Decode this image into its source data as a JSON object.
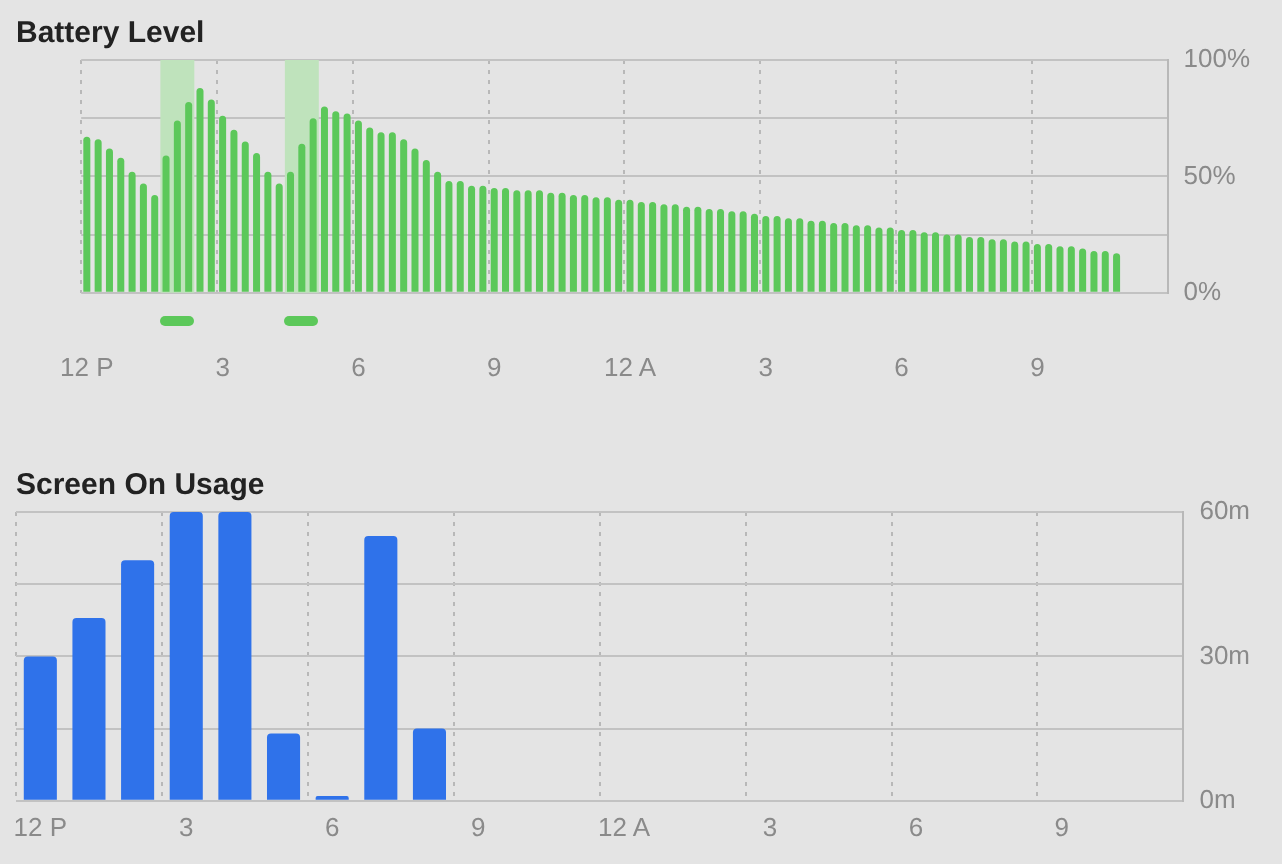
{
  "chart_data": [
    {
      "type": "bar",
      "title": "Battery Level",
      "color": "#5cc85a",
      "categories": [
        "12 P",
        null,
        null,
        null,
        null,
        null,
        null,
        null,
        null,
        null,
        null,
        null,
        "3",
        null,
        null,
        null,
        null,
        null,
        null,
        null,
        null,
        null,
        null,
        null,
        "6",
        null,
        null,
        null,
        null,
        null,
        null,
        null,
        null,
        null,
        null,
        null,
        "9",
        null,
        null,
        null,
        null,
        null,
        null,
        null,
        null,
        null,
        null,
        null,
        "12 A",
        null,
        null,
        null,
        null,
        null,
        null,
        null,
        null,
        null,
        null,
        null,
        "3",
        null,
        null,
        null,
        null,
        null,
        null,
        null,
        null,
        null,
        null,
        null,
        "6",
        null,
        null,
        null,
        null,
        null,
        null,
        null,
        null,
        null,
        null,
        null,
        "9",
        null,
        null,
        null,
        null,
        null,
        null,
        null,
        null,
        null,
        null,
        null
      ],
      "values": [
        67,
        66,
        62,
        58,
        52,
        47,
        42,
        59,
        74,
        82,
        88,
        83,
        76,
        70,
        65,
        60,
        52,
        47,
        52,
        64,
        75,
        80,
        78,
        77,
        74,
        71,
        69,
        69,
        66,
        62,
        57,
        52,
        48,
        48,
        46,
        46,
        45,
        45,
        44,
        44,
        44,
        43,
        43,
        42,
        42,
        41,
        41,
        40,
        40,
        39,
        39,
        38,
        38,
        37,
        37,
        36,
        36,
        35,
        35,
        34,
        33,
        33,
        32,
        32,
        31,
        31,
        30,
        30,
        29,
        29,
        28,
        28,
        27,
        27,
        26,
        26,
        25,
        25,
        24,
        24,
        23,
        23,
        22,
        22,
        21,
        21,
        20,
        20,
        19,
        18,
        18,
        17,
        null,
        null,
        null,
        null
      ],
      "ylim": [
        0,
        100
      ],
      "yticks": [
        {
          "value": 0,
          "label": "0%"
        },
        {
          "value": 25,
          "label": null
        },
        {
          "value": 50,
          "label": "50%"
        },
        {
          "value": 75,
          "label": null
        },
        {
          "value": 100,
          "label": "100%"
        }
      ],
      "grid": true
    },
    {
      "type": "bar",
      "title": "Screen On Usage",
      "color": "#2f72ea",
      "categories": [
        "12 P",
        null,
        null,
        "3",
        null,
        null,
        "6",
        null,
        null,
        "9",
        null,
        null,
        "12 A",
        null,
        null,
        "3",
        null,
        null,
        "6",
        null,
        null,
        "9",
        null,
        null
      ],
      "values": [
        30,
        38,
        50,
        60,
        60,
        14,
        1,
        55,
        15,
        null,
        null,
        null,
        null,
        null,
        null,
        null,
        null,
        null,
        null,
        null,
        null,
        null,
        null,
        null
      ],
      "ylim": [
        0,
        60
      ],
      "yticks": [
        {
          "value": 0,
          "label": "0m"
        },
        {
          "value": 15,
          "label": null
        },
        {
          "value": 30,
          "label": "30m"
        },
        {
          "value": 45,
          "label": null
        },
        {
          "value": 60,
          "label": "60m"
        }
      ],
      "grid": true
    }
  ]
}
